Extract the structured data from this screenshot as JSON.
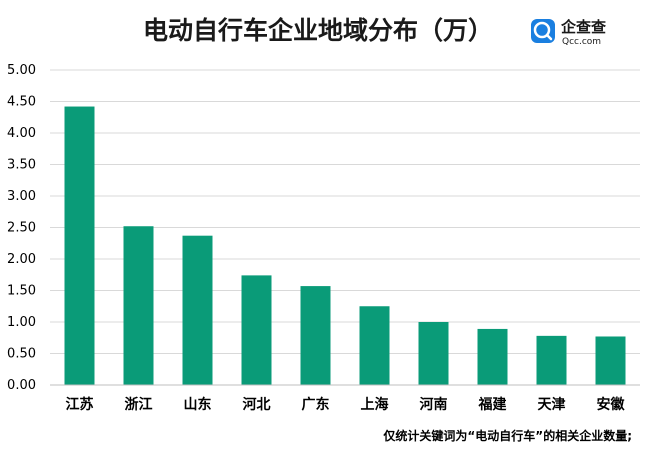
{
  "chart_data": {
    "type": "bar",
    "title": "电动自行车企业地域分布（万）",
    "categories": [
      "江苏",
      "浙江",
      "山东",
      "河北",
      "广东",
      "上海",
      "河南",
      "福建",
      "天津",
      "安徽"
    ],
    "values": [
      4.42,
      2.52,
      2.37,
      1.74,
      1.57,
      1.25,
      1.0,
      0.89,
      0.78,
      0.77
    ],
    "ylim": [
      0,
      5
    ],
    "yticks": [
      "0.00",
      "0.50",
      "1.00",
      "1.50",
      "2.00",
      "2.50",
      "3.00",
      "3.50",
      "4.00",
      "4.50",
      "5.00"
    ],
    "grid": true,
    "bar_color": "#0a9b78",
    "footnote": "仅统计关键词为“电动自行车”的相关企业数量;"
  },
  "logo": {
    "name_cn": "企查查",
    "name_en": "Qcc.com",
    "color": "#1a7fe0"
  }
}
